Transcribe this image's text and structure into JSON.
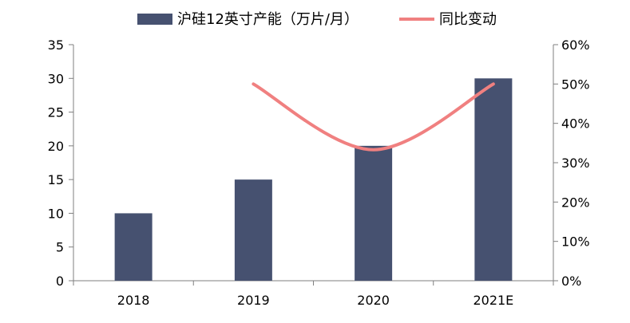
{
  "chart_data": {
    "type": "bar",
    "categories": [
      "2018",
      "2019",
      "2020",
      "2021E"
    ],
    "series": [
      {
        "name": "沪硅12英寸产能（万片/月）",
        "type": "bar",
        "axis": "left",
        "values": [
          10,
          15,
          20,
          30
        ],
        "color": "#465170"
      },
      {
        "name": "同比变动",
        "type": "line",
        "axis": "right",
        "values": [
          null,
          50,
          33.3,
          50
        ],
        "color": "#F08080"
      }
    ],
    "ylim": [
      0,
      35
    ],
    "y_ticks": [
      0,
      5,
      10,
      15,
      20,
      25,
      30,
      35
    ],
    "y2lim": [
      0,
      60
    ],
    "y2_ticks": [
      "0%",
      "10%",
      "20%",
      "30%",
      "40%",
      "50%",
      "60%"
    ],
    "y2_tick_values": [
      0,
      10,
      20,
      30,
      40,
      50,
      60
    ],
    "grid": false,
    "legend_position": "top-center"
  }
}
